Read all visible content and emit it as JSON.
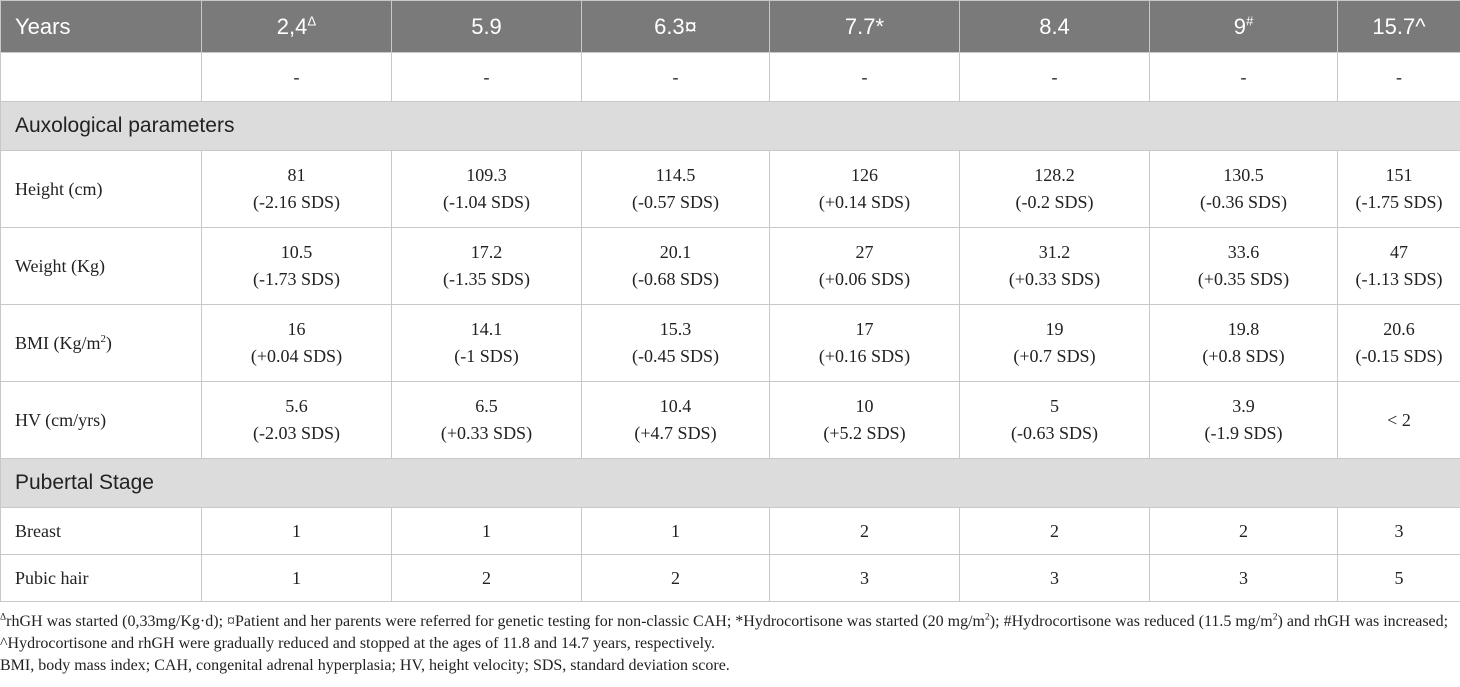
{
  "header": {
    "first": "Years",
    "cols": [
      {
        "text": "2,4",
        "sup": "Δ"
      },
      {
        "text": "5.9",
        "sup": ""
      },
      {
        "text": "6.3¤",
        "sup": ""
      },
      {
        "text": "7.7*",
        "sup": ""
      },
      {
        "text": "8.4",
        "sup": ""
      },
      {
        "text": "9",
        "sup": "#"
      },
      {
        "text": "15.7^",
        "sup": ""
      }
    ]
  },
  "empty_row": [
    "",
    "-",
    "-",
    "-",
    "-",
    "-",
    "-",
    "-"
  ],
  "sections": {
    "auxological": "Auxological parameters",
    "pubertal": "Pubertal Stage"
  },
  "rows": {
    "height": {
      "label": "Height (cm)",
      "values": [
        [
          "81",
          "(-2.16 SDS)"
        ],
        [
          "109.3",
          "(-1.04 SDS)"
        ],
        [
          "114.5",
          "(-0.57 SDS)"
        ],
        [
          "126",
          "(+0.14 SDS)"
        ],
        [
          "128.2",
          "(-0.2 SDS)"
        ],
        [
          "130.5",
          "(-0.36 SDS)"
        ],
        [
          "151",
          "(-1.75 SDS)"
        ]
      ]
    },
    "weight": {
      "label": "Weight (Kg)",
      "values": [
        [
          "10.5",
          "(-1.73 SDS)"
        ],
        [
          "17.2",
          "(-1.35 SDS)"
        ],
        [
          "20.1",
          "(-0.68 SDS)"
        ],
        [
          "27",
          "(+0.06 SDS)"
        ],
        [
          "31.2",
          "(+0.33 SDS)"
        ],
        [
          "33.6",
          "(+0.35 SDS)"
        ],
        [
          "47",
          "(-1.13 SDS)"
        ]
      ]
    },
    "bmi": {
      "label": "BMI (Kg/m",
      "label_sup": "2",
      "label_end": ")",
      "values": [
        [
          "16",
          "(+0.04 SDS)"
        ],
        [
          "14.1",
          "(-1 SDS)"
        ],
        [
          "15.3",
          "(-0.45 SDS)"
        ],
        [
          "17",
          "(+0.16 SDS)"
        ],
        [
          "19",
          "(+0.7 SDS)"
        ],
        [
          "19.8",
          "(+0.8 SDS)"
        ],
        [
          "20.6",
          "(-0.15 SDS)"
        ]
      ]
    },
    "hv": {
      "label": "HV (cm/yrs)",
      "values": [
        [
          "5.6",
          "(-2.03 SDS)"
        ],
        [
          "6.5",
          "(+0.33 SDS)"
        ],
        [
          "10.4",
          "(+4.7 SDS)"
        ],
        [
          "10",
          "(+5.2 SDS)"
        ],
        [
          "5",
          "(-0.63 SDS)"
        ],
        [
          "3.9",
          "(-1.9 SDS)"
        ],
        [
          "< 2",
          ""
        ]
      ]
    },
    "breast": {
      "label": "Breast",
      "values": [
        "1",
        "1",
        "1",
        "2",
        "2",
        "2",
        "3"
      ]
    },
    "pubic": {
      "label": "Pubic hair",
      "values": [
        "1",
        "2",
        "2",
        "3",
        "3",
        "3",
        "5"
      ]
    }
  },
  "footnotes": {
    "line1_sup": "Δ",
    "line1_a": "rhGH was started (0,33mg/Kg·d); ¤Patient and her parents were referred for genetic testing for non-classic CAH; *Hydrocortisone was started (20 mg/m",
    "line1_sup2": "2",
    "line1_b": "); #Hydrocortisone was reduced (11.5 mg/m",
    "line1_sup3": "2",
    "line1_c": ") and rhGH was increased; ^Hydrocortisone and rhGH were gradually reduced and stopped at the ages of 11.8 and 14.7 years, respectively.",
    "line2": "BMI, body mass index; CAH, congenital adrenal hyperplasia; HV, height velocity; SDS, standard deviation score."
  }
}
